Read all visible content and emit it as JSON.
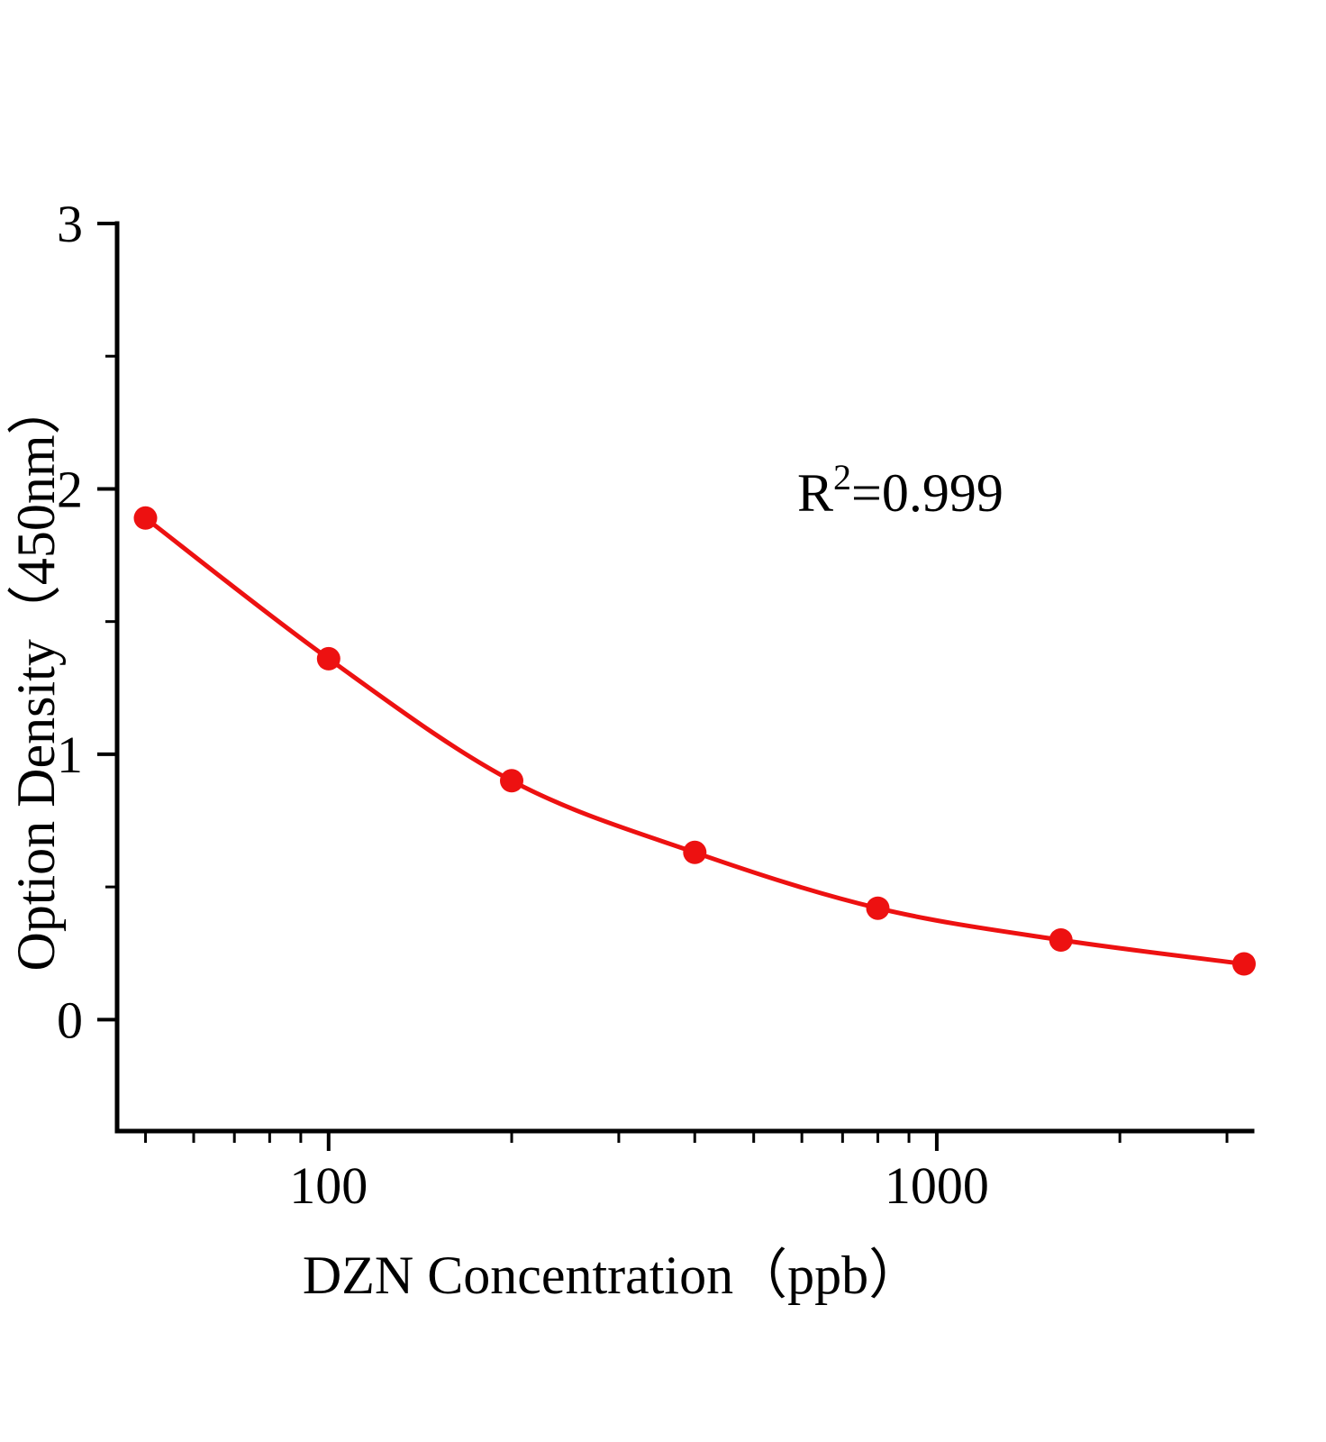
{
  "page": {
    "background": "#ffffff"
  },
  "chart_data": {
    "type": "line",
    "title": "",
    "x": [
      50,
      100,
      200,
      400,
      800,
      1600,
      3200
    ],
    "y": [
      1.89,
      1.36,
      0.9,
      0.63,
      0.42,
      0.3,
      0.21
    ],
    "x_scale": "log",
    "xlabel": "DZN Concentration（ppb）",
    "ylabel": "Option Density（450nm）",
    "xlim": [
      44.9,
      3300
    ],
    "ylim": [
      -0.42,
      3
    ],
    "x_major_ticks": [
      100,
      1000
    ],
    "x_minor_ticks": [
      50,
      60,
      70,
      80,
      90,
      200,
      300,
      400,
      500,
      600,
      700,
      800,
      900,
      2000,
      3000
    ],
    "y_major_ticks": [
      0,
      1,
      2,
      3
    ],
    "y_minor_ticks": [
      0.5,
      1.5,
      2.5
    ],
    "annotation": {
      "base": "R",
      "superscript": "2",
      "rest": "=0.999"
    },
    "line_color": "#ed1111",
    "marker_color": "#ed1111",
    "axis_color": "#000000",
    "grid": false,
    "legend_position": "none"
  }
}
